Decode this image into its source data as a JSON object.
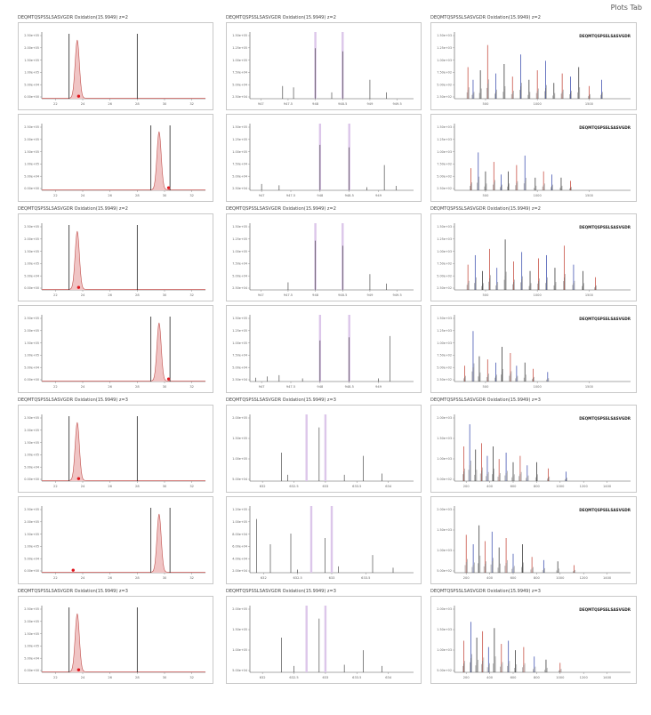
{
  "page_title": "Plots Tab",
  "peptide_headers": [
    "DEQMTQSPSSLSASVGDR Oxidation(15.9949) z=2",
    "DEQMTQSPSSLSASVGDR Oxidation(15.9949) z=2",
    "DEQMTQSPSSLSASVGDR Oxidation(15.9949) z=2",
    "DEQMTQSPSSLSASVGDR Oxidation(15.9949) z=3",
    "DEQMTQSPSSLSASVGDR Oxidation(15.9949) z=3"
  ],
  "sequence_label": "DEQMTQSPSSLSASVGDR",
  "colors": {
    "xic_fill": "#f0c4c4",
    "xic_line": "#c0504d",
    "marker": "#e0141c",
    "isotope_band": "#dcc6ea",
    "ms2_blue": "#2b3fa8",
    "ms2_red": "#c0392b"
  },
  "chart_data": [
    {
      "type": "line",
      "panel": "xic-row1",
      "ylabels": [
        "2.50e+05",
        "2.00e+05",
        "1.50e+05",
        "1.00e+05",
        "5.00e+04",
        "0.00e+00"
      ],
      "xticks": [
        "22",
        "24",
        "26",
        "28",
        "30",
        "32"
      ],
      "xlim": [
        21,
        33
      ],
      "peak_rt": 23.6,
      "boundaries": [
        23.0,
        28.0
      ],
      "marker_rt": 23.7
    },
    {
      "type": "bar",
      "panel": "isotope-row1",
      "ylabels": [
        "1.50e+05",
        "1.25e+05",
        "1.00e+05",
        "7.50e+04",
        "5.00e+04",
        "2.50e+04"
      ],
      "xticks": [
        "947",
        "947.5",
        "948",
        "948.5",
        "949",
        "949.5"
      ],
      "xlim": [
        946.8,
        949.8
      ],
      "highlight": [
        948.0,
        948.5
      ],
      "peaks": [
        {
          "x": 947.4,
          "y": 0.2
        },
        {
          "x": 947.6,
          "y": 0.18
        },
        {
          "x": 948.0,
          "y": 0.8
        },
        {
          "x": 948.3,
          "y": 0.1
        },
        {
          "x": 948.5,
          "y": 0.75
        },
        {
          "x": 949.0,
          "y": 0.3
        },
        {
          "x": 949.3,
          "y": 0.1
        }
      ]
    },
    {
      "type": "bar",
      "panel": "ms2-row1",
      "ylabels": [
        "1.50e+03",
        "1.25e+03",
        "1.00e+03",
        "7.50e+02",
        "5.00e+02",
        "2.50e+02"
      ],
      "xticks": [
        "500",
        "1000",
        "1500"
      ],
      "xlim": [
        200,
        1900
      ],
      "peaks": [
        {
          "x": 330,
          "y": 0.5
        },
        {
          "x": 380,
          "y": 0.3
        },
        {
          "x": 450,
          "y": 0.45
        },
        {
          "x": 520,
          "y": 0.85
        },
        {
          "x": 600,
          "y": 0.4
        },
        {
          "x": 680,
          "y": 0.55
        },
        {
          "x": 760,
          "y": 0.35
        },
        {
          "x": 840,
          "y": 0.7
        },
        {
          "x": 920,
          "y": 0.3
        },
        {
          "x": 1000,
          "y": 0.45
        },
        {
          "x": 1080,
          "y": 0.6
        },
        {
          "x": 1160,
          "y": 0.25
        },
        {
          "x": 1240,
          "y": 0.4
        },
        {
          "x": 1320,
          "y": 0.35
        },
        {
          "x": 1400,
          "y": 0.5
        },
        {
          "x": 1500,
          "y": 0.2
        },
        {
          "x": 1620,
          "y": 0.3
        }
      ]
    },
    {
      "type": "line",
      "panel": "xic-row2",
      "ylabels": [
        "2.50e+05",
        "2.00e+05",
        "1.50e+05",
        "1.00e+05",
        "5.00e+04",
        "0.00e+00"
      ],
      "xticks": [
        "22",
        "24",
        "26",
        "28",
        "30",
        "32"
      ],
      "xlim": [
        21,
        33
      ],
      "peak_rt": 29.6,
      "boundaries": [
        29.0,
        30.4
      ],
      "marker_rt": 30.3
    },
    {
      "type": "bar",
      "panel": "isotope-row2",
      "ylabels": [
        "1.50e+05",
        "1.25e+05",
        "1.00e+05",
        "7.50e+04",
        "5.00e+04",
        "2.50e+04"
      ],
      "xticks": [
        "947",
        "947.5",
        "948",
        "948.5",
        "949"
      ],
      "xlim": [
        946.8,
        949.6
      ],
      "highlight": [
        948.0,
        948.5
      ],
      "peaks": [
        {
          "x": 947.0,
          "y": 0.1
        },
        {
          "x": 947.3,
          "y": 0.08
        },
        {
          "x": 948.0,
          "y": 0.72
        },
        {
          "x": 948.5,
          "y": 0.68
        },
        {
          "x": 948.8,
          "y": 0.05
        },
        {
          "x": 949.1,
          "y": 0.4
        },
        {
          "x": 949.3,
          "y": 0.07
        }
      ]
    },
    {
      "type": "bar",
      "panel": "ms2-row2",
      "ylabels": [
        "1.50e+03",
        "1.25e+03",
        "1.00e+03",
        "7.50e+02",
        "5.00e+02",
        "2.50e+02"
      ],
      "xticks": [
        "500",
        "1000",
        "1500"
      ],
      "xlim": [
        200,
        1900
      ],
      "peaks": [
        {
          "x": 360,
          "y": 0.35
        },
        {
          "x": 430,
          "y": 0.6
        },
        {
          "x": 500,
          "y": 0.3
        },
        {
          "x": 580,
          "y": 0.45
        },
        {
          "x": 650,
          "y": 0.25
        },
        {
          "x": 720,
          "y": 0.3
        },
        {
          "x": 800,
          "y": 0.4
        },
        {
          "x": 880,
          "y": 0.55
        },
        {
          "x": 980,
          "y": 0.2
        },
        {
          "x": 1060,
          "y": 0.3
        },
        {
          "x": 1140,
          "y": 0.25
        },
        {
          "x": 1230,
          "y": 0.2
        },
        {
          "x": 1320,
          "y": 0.15
        }
      ]
    },
    {
      "type": "line",
      "panel": "xic-row3",
      "ylabels": [
        "2.50e+05",
        "2.00e+05",
        "1.50e+05",
        "1.00e+05",
        "5.00e+04",
        "0.00e+00"
      ],
      "xticks": [
        "22",
        "24",
        "26",
        "28",
        "30",
        "32"
      ],
      "xlim": [
        21,
        33
      ],
      "peak_rt": 23.6,
      "boundaries": [
        23.0,
        28.0
      ],
      "marker_rt": 23.7
    },
    {
      "type": "bar",
      "panel": "isotope-row3",
      "ylabels": [
        "1.50e+05",
        "1.25e+05",
        "1.00e+05",
        "7.50e+04",
        "5.00e+04",
        "2.50e+04"
      ],
      "xticks": [
        "947",
        "947.5",
        "948",
        "948.5",
        "949",
        "949.5"
      ],
      "xlim": [
        946.8,
        949.8
      ],
      "highlight": [
        948.0,
        948.5
      ],
      "peaks": [
        {
          "x": 947.5,
          "y": 0.12
        },
        {
          "x": 948.0,
          "y": 0.78
        },
        {
          "x": 948.5,
          "y": 0.7
        },
        {
          "x": 949.0,
          "y": 0.25
        },
        {
          "x": 949.3,
          "y": 0.1
        }
      ]
    },
    {
      "type": "bar",
      "panel": "ms2-row3",
      "ylabels": [
        "1.50e+03",
        "1.25e+03",
        "1.00e+03",
        "7.50e+02",
        "5.00e+02",
        "2.50e+02"
      ],
      "xticks": [
        "500",
        "1000",
        "1500"
      ],
      "xlim": [
        200,
        1900
      ],
      "peaks": [
        {
          "x": 330,
          "y": 0.4
        },
        {
          "x": 400,
          "y": 0.55
        },
        {
          "x": 470,
          "y": 0.3
        },
        {
          "x": 540,
          "y": 0.65
        },
        {
          "x": 610,
          "y": 0.35
        },
        {
          "x": 690,
          "y": 0.8
        },
        {
          "x": 770,
          "y": 0.45
        },
        {
          "x": 850,
          "y": 0.6
        },
        {
          "x": 930,
          "y": 0.3
        },
        {
          "x": 1010,
          "y": 0.5
        },
        {
          "x": 1090,
          "y": 0.55
        },
        {
          "x": 1170,
          "y": 0.35
        },
        {
          "x": 1260,
          "y": 0.7
        },
        {
          "x": 1350,
          "y": 0.4
        },
        {
          "x": 1440,
          "y": 0.3
        },
        {
          "x": 1560,
          "y": 0.2
        }
      ]
    },
    {
      "type": "line",
      "panel": "xic-row4",
      "ylabels": [
        "2.50e+05",
        "2.00e+05",
        "1.50e+05",
        "1.00e+05",
        "5.00e+04",
        "0.00e+00"
      ],
      "xticks": [
        "22",
        "24",
        "26",
        "28",
        "30",
        "32"
      ],
      "xlim": [
        21,
        33
      ],
      "peak_rt": 29.6,
      "boundaries": [
        29.0,
        30.4
      ],
      "marker_rt": 30.3
    },
    {
      "type": "bar",
      "panel": "isotope-row4",
      "ylabels": [
        "1.50e+05",
        "1.25e+05",
        "1.00e+05",
        "7.50e+04",
        "5.00e+04",
        "2.50e+04"
      ],
      "xticks": [
        "947",
        "947.5",
        "948",
        "948.5",
        "949"
      ],
      "xlim": [
        946.8,
        949.6
      ],
      "highlight": [
        948.0,
        948.5
      ],
      "peaks": [
        {
          "x": 946.9,
          "y": 0.06
        },
        {
          "x": 947.1,
          "y": 0.08
        },
        {
          "x": 947.3,
          "y": 0.1
        },
        {
          "x": 947.7,
          "y": 0.05
        },
        {
          "x": 948.0,
          "y": 0.65
        },
        {
          "x": 948.5,
          "y": 0.7
        },
        {
          "x": 949.0,
          "y": 0.05
        },
        {
          "x": 949.2,
          "y": 0.72
        }
      ]
    },
    {
      "type": "bar",
      "panel": "ms2-row4",
      "ylabels": [
        "1.50e+03",
        "1.25e+03",
        "1.00e+03",
        "7.50e+02",
        "5.00e+02",
        "2.50e+02"
      ],
      "xticks": [
        "500",
        "1000",
        "1500"
      ],
      "xlim": [
        200,
        1900
      ],
      "peaks": [
        {
          "x": 300,
          "y": 0.25
        },
        {
          "x": 380,
          "y": 0.8
        },
        {
          "x": 440,
          "y": 0.4
        },
        {
          "x": 520,
          "y": 0.35
        },
        {
          "x": 600,
          "y": 0.3
        },
        {
          "x": 660,
          "y": 0.55
        },
        {
          "x": 740,
          "y": 0.45
        },
        {
          "x": 800,
          "y": 0.25
        },
        {
          "x": 880,
          "y": 0.3
        },
        {
          "x": 960,
          "y": 0.2
        },
        {
          "x": 1100,
          "y": 0.15
        }
      ]
    },
    {
      "type": "line",
      "panel": "xic-row5",
      "ylabels": [
        "2.50e+05",
        "2.00e+05",
        "1.50e+05",
        "1.00e+05",
        "5.00e+04",
        "0.00e+00"
      ],
      "xticks": [
        "22",
        "24",
        "26",
        "28",
        "30",
        "32"
      ],
      "xlim": [
        21,
        33
      ],
      "peak_rt": 23.6,
      "boundaries": [
        23.0,
        28.0
      ],
      "marker_rt": 23.7
    },
    {
      "type": "bar",
      "panel": "isotope-row5",
      "ylabels": [
        "2.00e+05",
        "1.50e+05",
        "1.00e+05",
        "5.00e+04"
      ],
      "xticks": [
        "632",
        "632.5",
        "633",
        "633.5",
        "634"
      ],
      "xlim": [
        631.8,
        634.4
      ],
      "highlight": [
        632.7,
        633.0
      ],
      "peaks": [
        {
          "x": 632.3,
          "y": 0.45
        },
        {
          "x": 632.4,
          "y": 0.1
        },
        {
          "x": 632.9,
          "y": 0.85
        },
        {
          "x": 633.3,
          "y": 0.1
        },
        {
          "x": 633.6,
          "y": 0.4
        },
        {
          "x": 633.9,
          "y": 0.12
        }
      ]
    },
    {
      "type": "bar",
      "panel": "ms2-row5",
      "ylabels": [
        "2.00e+03",
        "1.50e+03",
        "1.00e+03",
        "5.00e+02"
      ],
      "xticks": [
        "200",
        "400",
        "600",
        "800",
        "1000",
        "1200",
        "1400"
      ],
      "xlim": [
        100,
        1600
      ],
      "peaks": [
        {
          "x": 180,
          "y": 0.55
        },
        {
          "x": 230,
          "y": 0.9
        },
        {
          "x": 280,
          "y": 0.5
        },
        {
          "x": 330,
          "y": 0.6
        },
        {
          "x": 380,
          "y": 0.4
        },
        {
          "x": 430,
          "y": 0.55
        },
        {
          "x": 480,
          "y": 0.35
        },
        {
          "x": 540,
          "y": 0.45
        },
        {
          "x": 600,
          "y": 0.3
        },
        {
          "x": 660,
          "y": 0.4
        },
        {
          "x": 720,
          "y": 0.25
        },
        {
          "x": 800,
          "y": 0.3
        },
        {
          "x": 900,
          "y": 0.2
        },
        {
          "x": 1050,
          "y": 0.15
        }
      ]
    },
    {
      "type": "line",
      "panel": "xic-row6",
      "ylabels": [
        "2.50e+05",
        "2.00e+05",
        "1.50e+05",
        "1.00e+05",
        "5.00e+04",
        "0.00e+00"
      ],
      "xticks": [
        "22",
        "24",
        "26",
        "28",
        "30",
        "32"
      ],
      "xlim": [
        21,
        33
      ],
      "peak_rt": 29.6,
      "boundaries": [
        29.0,
        30.4
      ],
      "marker_rt": 23.3
    },
    {
      "type": "bar",
      "panel": "isotope-row6",
      "ylabels": [
        "1.20e+05",
        "1.00e+05",
        "8.00e+04",
        "6.00e+04",
        "4.00e+04",
        "2.00e+04"
      ],
      "xticks": [
        "632",
        "632.5",
        "633",
        "633.5"
      ],
      "xlim": [
        631.8,
        634.2
      ],
      "highlight": [
        632.7,
        633.0
      ],
      "peaks": [
        {
          "x": 631.9,
          "y": 0.85
        },
        {
          "x": 632.1,
          "y": 0.45
        },
        {
          "x": 632.4,
          "y": 0.62
        },
        {
          "x": 632.5,
          "y": 0.05
        },
        {
          "x": 632.9,
          "y": 0.55
        },
        {
          "x": 633.1,
          "y": 0.1
        },
        {
          "x": 633.6,
          "y": 0.28
        },
        {
          "x": 633.9,
          "y": 0.08
        }
      ]
    },
    {
      "type": "bar",
      "panel": "ms2-row6",
      "ylabels": [
        "2.00e+03",
        "1.50e+03",
        "1.00e+03",
        "5.00e+02"
      ],
      "xticks": [
        "200",
        "400",
        "600",
        "800",
        "1000",
        "1200",
        "1400"
      ],
      "xlim": [
        100,
        1600
      ],
      "peaks": [
        {
          "x": 200,
          "y": 0.6
        },
        {
          "x": 260,
          "y": 0.45
        },
        {
          "x": 310,
          "y": 0.75
        },
        {
          "x": 360,
          "y": 0.5
        },
        {
          "x": 420,
          "y": 0.65
        },
        {
          "x": 480,
          "y": 0.4
        },
        {
          "x": 540,
          "y": 0.55
        },
        {
          "x": 600,
          "y": 0.3
        },
        {
          "x": 680,
          "y": 0.45
        },
        {
          "x": 760,
          "y": 0.25
        },
        {
          "x": 860,
          "y": 0.2
        },
        {
          "x": 980,
          "y": 0.18
        },
        {
          "x": 1120,
          "y": 0.12
        }
      ]
    },
    {
      "type": "line",
      "panel": "xic-row7",
      "ylabels": [
        "2.50e+05",
        "2.00e+05",
        "1.50e+05",
        "1.00e+05",
        "5.00e+04",
        "0.00e+00"
      ],
      "xticks": [
        "22",
        "24",
        "26",
        "28",
        "30",
        "32"
      ],
      "xlim": [
        21,
        33
      ],
      "peak_rt": 23.6,
      "boundaries": [
        23.0,
        28.0
      ],
      "marker_rt": 23.7
    },
    {
      "type": "bar",
      "panel": "isotope-row7",
      "ylabels": [
        "2.00e+05",
        "1.50e+05",
        "1.00e+05",
        "5.00e+04"
      ],
      "xticks": [
        "632",
        "632.5",
        "633",
        "633.5",
        "634"
      ],
      "xlim": [
        631.8,
        634.4
      ],
      "highlight": [
        632.7,
        633.0
      ],
      "peaks": [
        {
          "x": 632.3,
          "y": 0.55
        },
        {
          "x": 632.5,
          "y": 0.1
        },
        {
          "x": 632.9,
          "y": 0.85
        },
        {
          "x": 633.3,
          "y": 0.12
        },
        {
          "x": 633.6,
          "y": 0.35
        },
        {
          "x": 633.9,
          "y": 0.1
        }
      ]
    },
    {
      "type": "bar",
      "panel": "ms2-row7",
      "ylabels": [
        "2.00e+03",
        "1.50e+03",
        "1.00e+03",
        "5.00e+02"
      ],
      "xticks": [
        "200",
        "400",
        "600",
        "800",
        "1000",
        "1200",
        "1400"
      ],
      "xlim": [
        100,
        1600
      ],
      "peaks": [
        {
          "x": 180,
          "y": 0.5
        },
        {
          "x": 240,
          "y": 0.8
        },
        {
          "x": 290,
          "y": 0.55
        },
        {
          "x": 340,
          "y": 0.65
        },
        {
          "x": 390,
          "y": 0.4
        },
        {
          "x": 440,
          "y": 0.7
        },
        {
          "x": 500,
          "y": 0.45
        },
        {
          "x": 560,
          "y": 0.5
        },
        {
          "x": 620,
          "y": 0.35
        },
        {
          "x": 690,
          "y": 0.4
        },
        {
          "x": 780,
          "y": 0.25
        },
        {
          "x": 880,
          "y": 0.2
        },
        {
          "x": 1000,
          "y": 0.15
        }
      ]
    }
  ]
}
